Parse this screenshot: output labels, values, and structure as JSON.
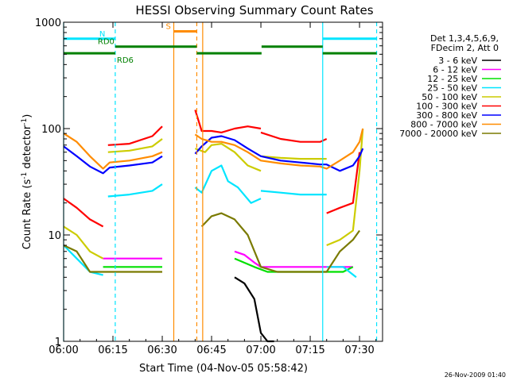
{
  "chart_data": {
    "type": "line",
    "title": "HESSI Observing Summary Count Rates",
    "xlabel": "Start Time (04-Nov-05 05:58:42)",
    "ylabel_main": "Count Rate (s",
    "ylabel_sup1": "-1",
    "ylabel_mid": " detector",
    "ylabel_sup2": "-1",
    "ylabel_end": ")",
    "footer": "26-Nov-2009 01:40",
    "yscale": "log",
    "ylim": [
      1,
      1000
    ],
    "xlim_minutes": [
      0,
      97
    ],
    "x_ticks": [
      {
        "label": "06:00",
        "minute": 0
      },
      {
        "label": "06:15",
        "minute": 15
      },
      {
        "label": "06:30",
        "minute": 30
      },
      {
        "label": "06:45",
        "minute": 45
      },
      {
        "label": "07:00",
        "minute": 60
      },
      {
        "label": "07:15",
        "minute": 75
      },
      {
        "label": "07:30",
        "minute": 90
      }
    ],
    "y_ticks": [
      {
        "label": "1",
        "value": 1
      },
      {
        "label": "10",
        "value": 10
      },
      {
        "label": "100",
        "value": 100
      },
      {
        "label": "1000",
        "value": 1000
      }
    ],
    "legend_header": [
      "Det 1,3,4,5,6,9,",
      "FDecim 2, Att 0"
    ],
    "series": [
      {
        "name": "3 - 6 keV",
        "color": "#000000",
        "segments": [
          [
            [
              52,
              4
            ],
            [
              55,
              3.5
            ],
            [
              58,
              2.5
            ],
            [
              60,
              1.2
            ],
            [
              62,
              1
            ],
            [
              64,
              1
            ]
          ]
        ]
      },
      {
        "name": "6 - 12 keV",
        "color": "#ff00ff",
        "segments": [
          [
            [
              12,
              6
            ],
            [
              15,
              6
            ],
            [
              20,
              6
            ],
            [
              25,
              6
            ],
            [
              30,
              6
            ]
          ],
          [
            [
              52,
              7
            ],
            [
              55,
              6.5
            ],
            [
              58,
              5.5
            ],
            [
              60,
              5
            ],
            [
              65,
              5
            ],
            [
              70,
              5
            ],
            [
              75,
              5
            ],
            [
              80,
              5
            ],
            [
              85,
              5
            ],
            [
              88,
              5
            ]
          ]
        ]
      },
      {
        "name": "12 - 25 keV",
        "color": "#00e000",
        "segments": [
          [
            [
              12,
              5
            ],
            [
              15,
              5
            ],
            [
              20,
              5
            ],
            [
              25,
              5
            ],
            [
              30,
              5
            ]
          ],
          [
            [
              52,
              6
            ],
            [
              58,
              5
            ],
            [
              62,
              4.5
            ],
            [
              70,
              4.5
            ],
            [
              78,
              4.5
            ],
            [
              85,
              4.5
            ],
            [
              88,
              5
            ]
          ]
        ]
      },
      {
        "name": "25 - 50 keV",
        "color": "#00e5ff",
        "segments": [
          [
            [
              -0.5,
              8
            ],
            [
              4,
              6
            ],
            [
              8,
              4.5
            ],
            [
              12,
              4.2
            ]
          ],
          [
            [
              13.5,
              23
            ],
            [
              20,
              24
            ],
            [
              27,
              26
            ],
            [
              30,
              30
            ]
          ],
          [
            [
              40,
              28
            ],
            [
              42,
              25
            ],
            [
              45,
              40
            ],
            [
              48,
              45
            ],
            [
              50,
              32
            ],
            [
              53,
              28
            ],
            [
              57,
              20
            ],
            [
              60,
              22
            ]
          ],
          [
            [
              60,
              26
            ],
            [
              66,
              25
            ],
            [
              72,
              24
            ],
            [
              78,
              24
            ],
            [
              80,
              24
            ]
          ],
          [
            [
              80,
              5
            ],
            [
              85,
              5
            ],
            [
              89,
              4
            ]
          ]
        ]
      },
      {
        "name": "50 - 100 keV",
        "color": "#cccc00",
        "segments": [
          [
            [
              -0.5,
              12
            ],
            [
              4,
              10
            ],
            [
              8,
              7
            ],
            [
              12,
              6
            ]
          ],
          [
            [
              13.5,
              60
            ],
            [
              20,
              62
            ],
            [
              27,
              68
            ],
            [
              30,
              80
            ]
          ],
          [
            [
              40,
              65
            ],
            [
              43,
              60
            ],
            [
              45,
              70
            ],
            [
              48,
              72
            ],
            [
              52,
              60
            ],
            [
              56,
              45
            ],
            [
              60,
              40
            ]
          ],
          [
            [
              60,
              55
            ],
            [
              66,
              53
            ],
            [
              72,
              52
            ],
            [
              78,
              52
            ],
            [
              80,
              52
            ]
          ],
          [
            [
              80,
              8
            ],
            [
              84,
              9
            ],
            [
              88,
              11
            ],
            [
              90,
              40
            ],
            [
              91,
              100
            ]
          ]
        ]
      },
      {
        "name": "100 - 300 keV",
        "color": "#ff0000",
        "segments": [
          [
            [
              -0.5,
              22
            ],
            [
              4,
              18
            ],
            [
              8,
              14
            ],
            [
              12,
              12
            ]
          ],
          [
            [
              13.5,
              70
            ],
            [
              20,
              72
            ],
            [
              27,
              85
            ],
            [
              30,
              105
            ]
          ],
          [
            [
              40,
              150
            ],
            [
              42,
              95
            ],
            [
              45,
              95
            ],
            [
              48,
              92
            ],
            [
              52,
              100
            ],
            [
              56,
              105
            ],
            [
              60,
              100
            ]
          ],
          [
            [
              60,
              92
            ],
            [
              66,
              80
            ],
            [
              72,
              75
            ],
            [
              78,
              75
            ],
            [
              80,
              80
            ]
          ],
          [
            [
              80,
              16
            ],
            [
              84,
              18
            ],
            [
              88,
              20
            ],
            [
              90,
              60
            ]
          ]
        ]
      },
      {
        "name": "300 - 800 keV",
        "color": "#0000ff",
        "segments": [
          [
            [
              -0.5,
              68
            ],
            [
              4,
              55
            ],
            [
              8,
              44
            ],
            [
              12,
              38
            ],
            [
              14,
              43
            ],
            [
              20,
              45
            ],
            [
              27,
              48
            ],
            [
              30,
              55
            ]
          ],
          [
            [
              40,
              58
            ],
            [
              42,
              68
            ],
            [
              45,
              82
            ],
            [
              48,
              85
            ],
            [
              52,
              78
            ],
            [
              56,
              65
            ],
            [
              60,
              55
            ],
            [
              66,
              50
            ],
            [
              72,
              48
            ],
            [
              78,
              46
            ],
            [
              80,
              46
            ],
            [
              84,
              40
            ],
            [
              88,
              45
            ],
            [
              90,
              55
            ],
            [
              91,
              65
            ]
          ]
        ]
      },
      {
        "name": "800 - 7000 keV",
        "color": "#ff8c00",
        "segments": [
          [
            [
              -0.5,
              90
            ],
            [
              4,
              75
            ],
            [
              8,
              55
            ],
            [
              12,
              42
            ],
            [
              14,
              48
            ],
            [
              20,
              50
            ],
            [
              27,
              55
            ],
            [
              30,
              60
            ]
          ],
          [
            [
              40,
              88
            ],
            [
              42,
              80
            ],
            [
              45,
              75
            ],
            [
              48,
              75
            ],
            [
              52,
              70
            ],
            [
              56,
              60
            ],
            [
              60,
              50
            ],
            [
              66,
              47
            ],
            [
              72,
              45
            ],
            [
              78,
              44
            ],
            [
              80,
              42
            ],
            [
              84,
              50
            ],
            [
              88,
              60
            ],
            [
              90,
              75
            ],
            [
              91,
              100
            ]
          ]
        ]
      },
      {
        "name": "7000 - 20000 keV",
        "color": "#7a7a00",
        "segments": [
          [
            [
              -0.5,
              8
            ],
            [
              4,
              7
            ],
            [
              8,
              4.5
            ],
            [
              12,
              4.5
            ],
            [
              20,
              4.5
            ],
            [
              30,
              4.5
            ]
          ],
          [
            [
              42,
              12
            ],
            [
              45,
              15
            ],
            [
              48,
              16
            ],
            [
              52,
              14
            ],
            [
              56,
              10
            ],
            [
              60,
              5
            ],
            [
              65,
              4.5
            ],
            [
              70,
              4.5
            ],
            [
              75,
              4.5
            ],
            [
              80,
              4.5
            ],
            [
              84,
              7
            ],
            [
              88,
              9
            ],
            [
              90,
              11
            ]
          ]
        ]
      }
    ],
    "vertical_lines": [
      {
        "minute": 0,
        "color": "#00e5ff",
        "dashed": false
      },
      {
        "minute": 15.7,
        "color": "#00e5ff",
        "dashed": true
      },
      {
        "minute": 33.5,
        "color": "#ff8c00",
        "dashed": false
      },
      {
        "minute": 40.5,
        "color": "#ff8c00",
        "dashed": true
      },
      {
        "minute": 42.3,
        "color": "#ff8c00",
        "dashed": false
      },
      {
        "minute": 78.8,
        "color": "#00e5ff",
        "dashed": false
      },
      {
        "minute": 95.2,
        "color": "#00e5ff",
        "dashed": true
      }
    ],
    "bars": [
      {
        "label": "N",
        "color": "#00e5ff",
        "value": 700,
        "ranges": [
          [
            0,
            15.7
          ],
          [
            78.8,
            95.2
          ]
        ]
      },
      {
        "label": "S",
        "color": "#ff8c00",
        "value": 820,
        "ranges": [
          [
            33.5,
            40.5
          ]
        ]
      },
      {
        "label": "RD0",
        "color": "#008000",
        "value": 590,
        "ranges": [
          [
            15.7,
            40.5
          ]
        ]
      },
      {
        "label": "RD6",
        "color": "#008000",
        "value": 510,
        "ranges": [
          [
            0,
            15.7
          ],
          [
            40.5,
            60.2
          ],
          [
            78.8,
            95.2
          ]
        ]
      },
      {
        "label": "",
        "color": "#008000",
        "value": 590,
        "ranges": [
          [
            60.2,
            78.8
          ]
        ]
      }
    ]
  }
}
